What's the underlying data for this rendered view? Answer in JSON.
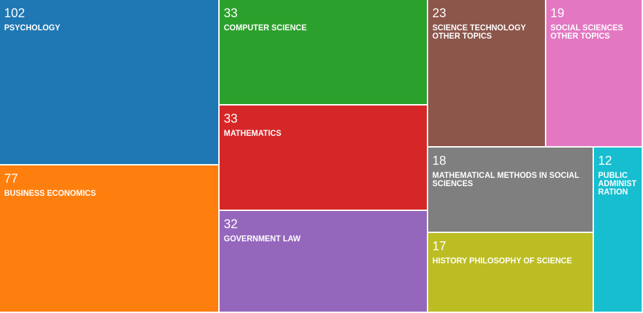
{
  "chart_data": {
    "type": "treemap",
    "title": "",
    "items": [
      {
        "label": "PSYCHOLOGY",
        "value": 102,
        "color": "#1f77b4"
      },
      {
        "label": "BUSINESS ECONOMICS",
        "value": 77,
        "color": "#ff7f0e"
      },
      {
        "label": "COMPUTER SCIENCE",
        "value": 33,
        "color": "#2ca02c"
      },
      {
        "label": "MATHEMATICS",
        "value": 33,
        "color": "#d62728"
      },
      {
        "label": "GOVERNMENT LAW",
        "value": 32,
        "color": "#9467bd"
      },
      {
        "label": "SCIENCE TECHNOLOGY OTHER TOPICS",
        "value": 23,
        "color": "#8c564b"
      },
      {
        "label": "SOCIAL SCIENCES OTHER TOPICS",
        "value": 19,
        "color": "#e377c2"
      },
      {
        "label": "MATHEMATICAL METHODS IN SOCIAL SCIENCES",
        "value": 18,
        "color": "#7f7f7f"
      },
      {
        "label": "HISTORY PHILOSOPHY OF SCIENCE",
        "value": 17,
        "color": "#bcbd22"
      },
      {
        "label": "PUBLIC ADMINISTRATION",
        "value": 12,
        "color": "#17becf"
      }
    ]
  }
}
